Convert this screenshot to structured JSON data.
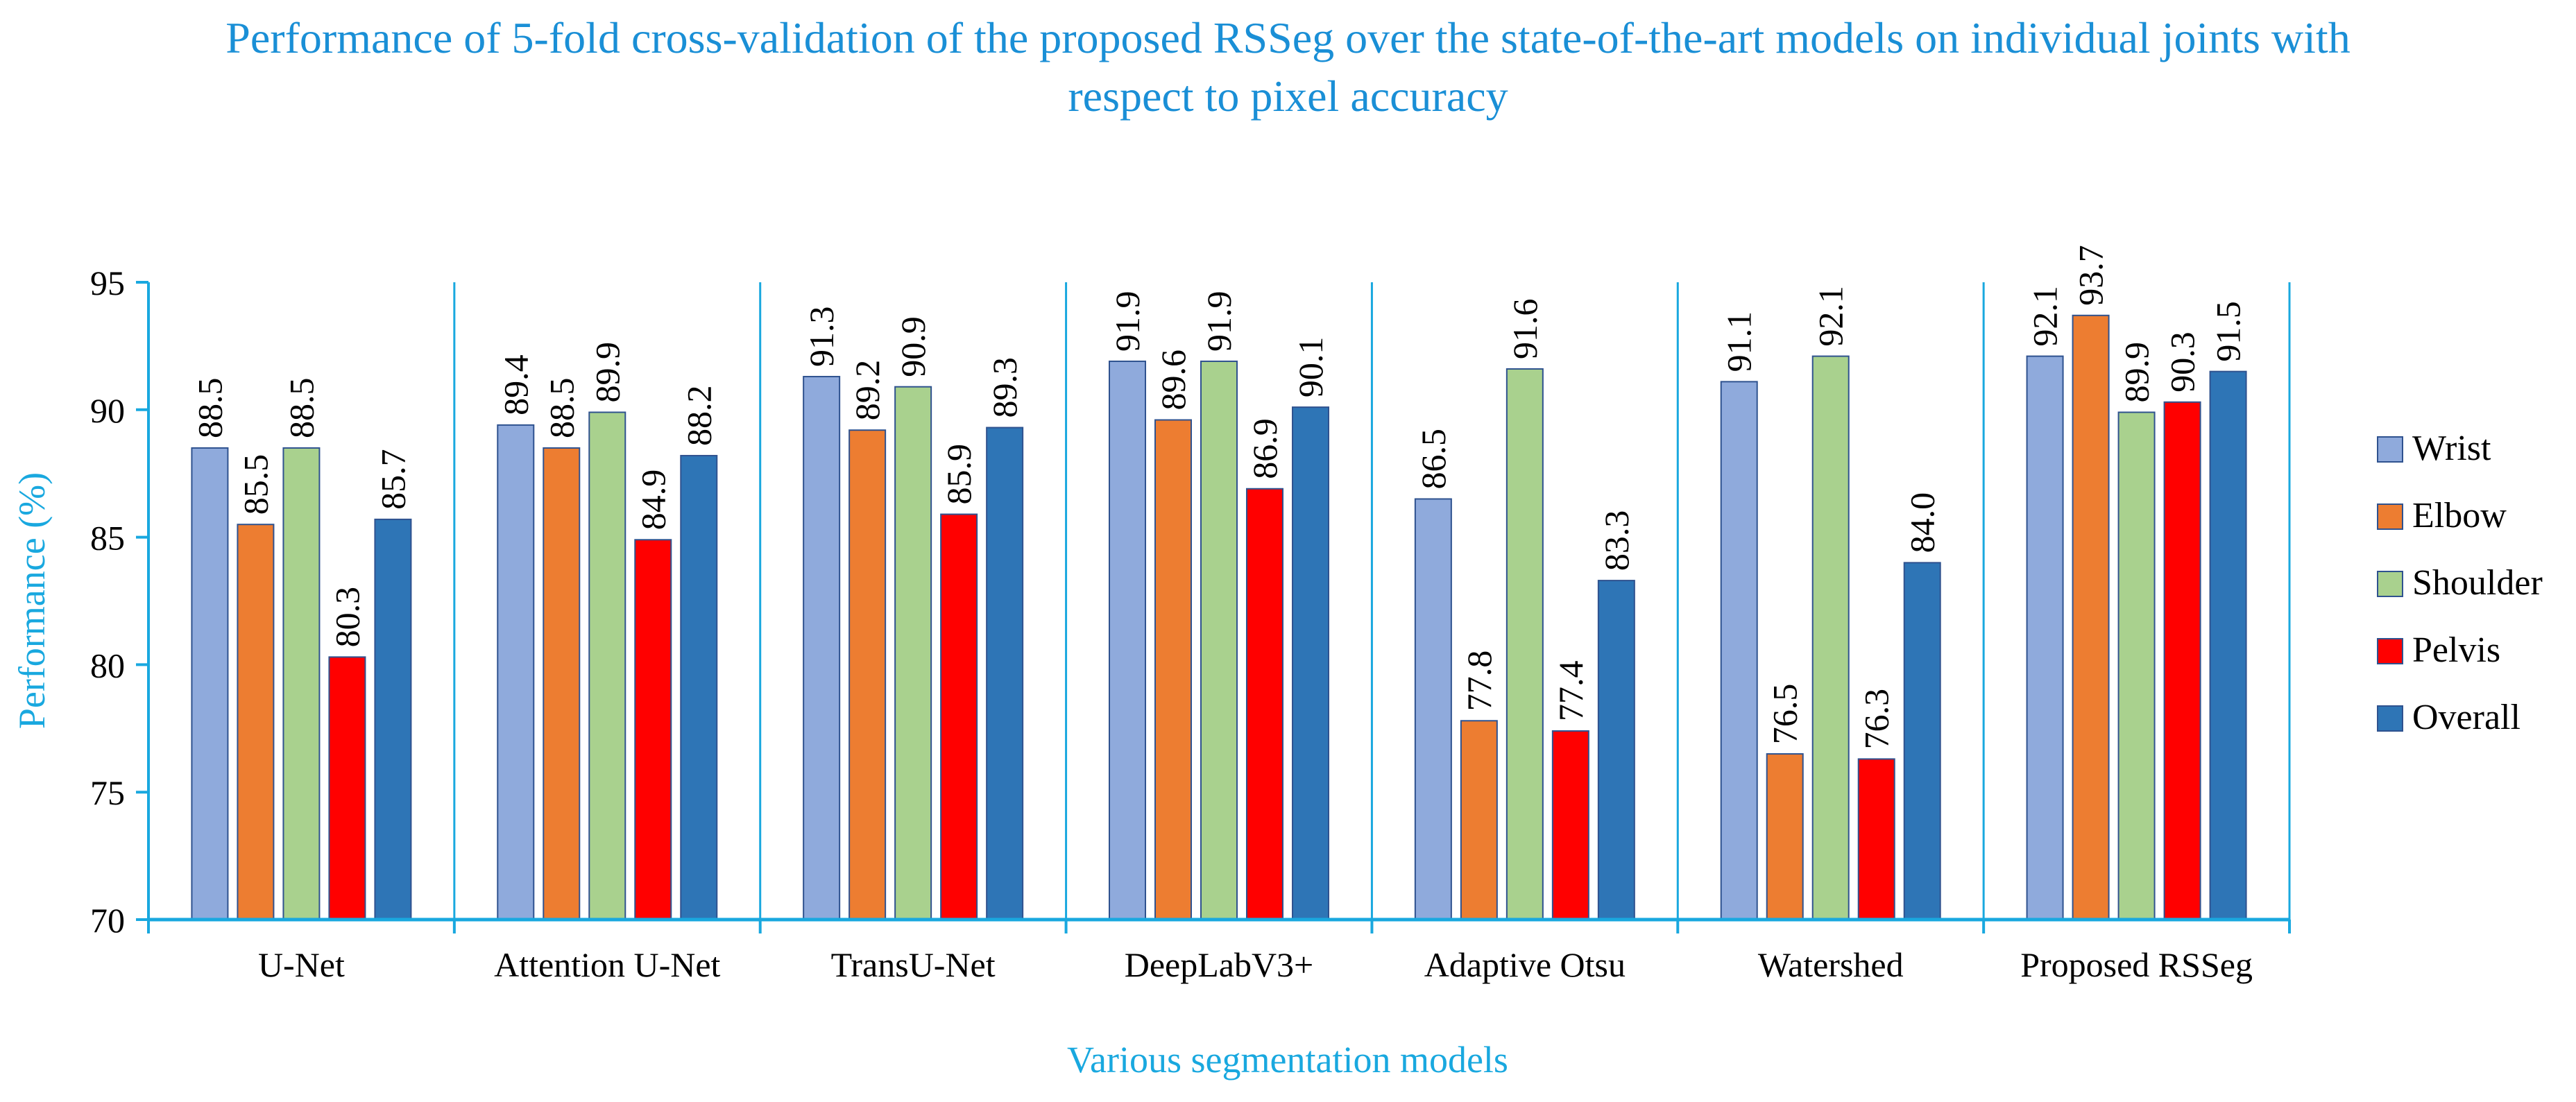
{
  "chart_data": {
    "type": "bar",
    "title_line1": "Performance of 5-fold cross-validation of the  proposed RSSeg over the state-of-the-art models on individual joints with",
    "title_line2": "respect to pixel accuracy",
    "xlabel": "Various segmentation models",
    "ylabel": "Performance (%)",
    "ylim": [
      70,
      95
    ],
    "yticks": [
      70,
      75,
      80,
      85,
      90,
      95
    ],
    "categories": [
      "U-Net",
      "Attention U-Net",
      "TransU-Net",
      "DeepLabV3+",
      "Adaptive Otsu",
      "Watershed",
      "Proposed RSSeg"
    ],
    "series": [
      {
        "name": "Wrist",
        "color": "#8faadc",
        "values": [
          88.5,
          89.4,
          91.3,
          91.9,
          86.5,
          91.1,
          92.1
        ]
      },
      {
        "name": "Elbow",
        "color": "#ed7d31",
        "values": [
          85.5,
          88.5,
          89.2,
          89.6,
          77.8,
          76.5,
          93.7
        ]
      },
      {
        "name": "Shoulder",
        "color": "#a9d18e",
        "values": [
          88.5,
          89.9,
          90.9,
          91.9,
          91.6,
          92.1,
          89.9
        ]
      },
      {
        "name": "Pelvis",
        "color": "#ff0000",
        "values": [
          80.3,
          84.9,
          85.9,
          86.9,
          77.4,
          76.3,
          90.3
        ]
      },
      {
        "name": "Overall",
        "color": "#2e75b6",
        "values": [
          85.7,
          88.2,
          89.3,
          90.1,
          83.3,
          84.0,
          91.5
        ]
      }
    ],
    "legend_position": "right",
    "axis_color": "#19a8df",
    "title_color": "#1a8fd6"
  }
}
